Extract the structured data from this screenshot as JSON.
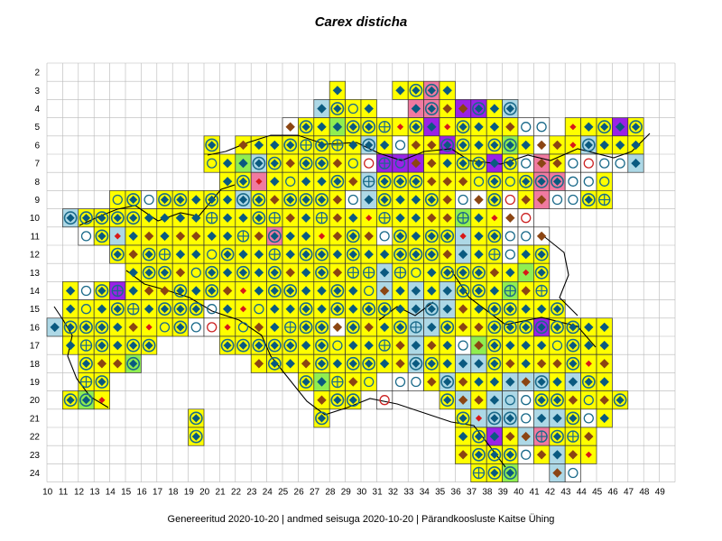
{
  "title": "Carex disticha",
  "footer": "Genereeritud 2020-10-20  |  andmed seisuga 2020-10-20  |  Pärandkoosluste Kaitse Ühing",
  "grid": {
    "row_labels": [
      "2",
      "3",
      "4",
      "5",
      "6",
      "7",
      "8",
      "9",
      "10",
      "11",
      "12",
      "13",
      "14",
      "15",
      "16",
      "17",
      "18",
      "19",
      "20",
      "21",
      "22",
      "23",
      "24"
    ],
    "col_labels": [
      "10",
      "11",
      "12",
      "13",
      "14",
      "15",
      "16",
      "17",
      "18",
      "19",
      "20",
      "21",
      "22",
      "23",
      "24",
      "25",
      "26",
      "27",
      "28",
      "29",
      "30",
      "31",
      "32",
      "33",
      "34",
      "35",
      "36",
      "37",
      "38",
      "39",
      "40",
      "41",
      "42",
      "43",
      "44",
      "45",
      "46",
      "47",
      "48",
      "49"
    ]
  },
  "colors": {
    "yellow": "#ffff00",
    "lightblue": "#add8e6",
    "green": "#90ee50",
    "pink": "#f07aa0",
    "purple": "#9a22e6",
    "grid": "#b8b8b8",
    "cell_border": "#333333",
    "diamond_blue": "#0a5a80",
    "diamond_brown": "#8b4513",
    "diamond_red": "#d81818",
    "circle_teal": "#1a6a8a",
    "circle_red": "#cc2222",
    "coast": "#000000"
  },
  "legend_markers": [
    "diamond-blue",
    "diamond-brown",
    "diamond-red",
    "ringed-diamond",
    "crossed-circle",
    "open-circle",
    "open-circle-red"
  ],
  "fills": {
    "2": {},
    "3": {
      "28": "Y",
      "32": "Y",
      "33": "Y",
      "34": "P",
      "35": "Y"
    },
    "4": {
      "27": "B",
      "28": "Y",
      "29": "Y",
      "30": "Y",
      "33": "P",
      "34": "P",
      "35": "Y",
      "36": "U",
      "37": "U",
      "38": "Y",
      "39": "B"
    },
    "5": {
      "25": "W",
      "26": "Y",
      "27": "Y",
      "28": "G",
      "29": "Y",
      "30": "Y",
      "31": "Y",
      "32": "Y",
      "33": "Y",
      "34": "U",
      "35": "Y",
      "36": "Y",
      "37": "Y",
      "38": "Y",
      "39": "Y",
      "40": "W",
      "41": "W",
      "43": "Y",
      "44": "Y",
      "45": "Y",
      "46": "U",
      "47": "Y"
    },
    "6": {
      "20": "Y",
      "22": "Y",
      "23": "Y",
      "24": "Y",
      "25": "Y",
      "26": "Y",
      "27": "Y",
      "28": "Y",
      "29": "Y",
      "30": "B",
      "31": "Y",
      "32": "W",
      "33": "Y",
      "34": "Y",
      "35": "U",
      "36": "Y",
      "37": "Y",
      "38": "Y",
      "39": "G",
      "40": "Y",
      "41": "W",
      "42": "Y",
      "43": "Y",
      "44": "B",
      "45": "Y",
      "46": "Y",
      "47": "Y"
    },
    "7": {
      "20": "Y",
      "21": "Y",
      "22": "G",
      "23": "B",
      "24": "Y",
      "25": "Y",
      "26": "Y",
      "27": "Y",
      "28": "Y",
      "29": "Y",
      "30": "W",
      "31": "U",
      "32": "U",
      "33": "U",
      "34": "Y",
      "35": "Y",
      "36": "Y",
      "37": "Y",
      "38": "U",
      "39": "Y",
      "40": "W",
      "41": "P",
      "42": "Y",
      "43": "W",
      "44": "W",
      "45": "W",
      "46": "W",
      "47": "B"
    },
    "8": {
      "21": "Y",
      "22": "Y",
      "23": "P",
      "24": "Y",
      "25": "Y",
      "26": "Y",
      "27": "Y",
      "28": "Y",
      "29": "Y",
      "30": "B",
      "31": "Y",
      "32": "Y",
      "33": "Y",
      "34": "Y",
      "35": "Y",
      "36": "Y",
      "37": "Y",
      "38": "Y",
      "39": "Y",
      "40": "Y",
      "41": "P",
      "42": "P",
      "43": "W",
      "44": "W",
      "45": "Y"
    },
    "9": {
      "14": "Y",
      "15": "Y",
      "16": "W",
      "17": "Y",
      "18": "Y",
      "19": "Y",
      "20": "Y",
      "21": "Y",
      "22": "B",
      "23": "Y",
      "24": "Y",
      "25": "Y",
      "26": "Y",
      "27": "Y",
      "28": "Y",
      "29": "W",
      "30": "B",
      "31": "Y",
      "32": "Y",
      "33": "Y",
      "34": "Y",
      "35": "Y",
      "36": "W",
      "37": "W",
      "38": "Y",
      "39": "W",
      "40": "Y",
      "41": "P",
      "42": "W",
      "43": "W",
      "44": "Y",
      "45": "Y"
    },
    "10": {
      "11": "B",
      "12": "Y",
      "13": "Y",
      "14": "Y",
      "15": "Y",
      "16": "Y",
      "17": "Y",
      "18": "Y",
      "19": "Y",
      "20": "Y",
      "21": "Y",
      "22": "Y",
      "23": "Y",
      "24": "Y",
      "25": "Y",
      "26": "Y",
      "27": "Y",
      "28": "Y",
      "29": "Y",
      "30": "Y",
      "31": "Y",
      "32": "Y",
      "33": "Y",
      "34": "Y",
      "35": "Y",
      "36": "G",
      "37": "Y",
      "38": "Y",
      "39": "W",
      "40": "W"
    },
    "11": {
      "12": "W",
      "13": "Y",
      "14": "B",
      "15": "Y",
      "16": "Y",
      "17": "Y",
      "18": "Y",
      "19": "Y",
      "20": "Y",
      "21": "Y",
      "22": "Y",
      "23": "Y",
      "24": "P",
      "25": "Y",
      "26": "Y",
      "27": "Y",
      "28": "Y",
      "29": "Y",
      "30": "Y",
      "31": "W",
      "32": "Y",
      "33": "Y",
      "34": "Y",
      "35": "Y",
      "36": "B",
      "37": "Y",
      "38": "Y",
      "39": "W",
      "40": "W",
      "41": "W"
    },
    "12": {
      "14": "Y",
      "15": "Y",
      "16": "Y",
      "17": "Y",
      "18": "Y",
      "19": "Y",
      "20": "Y",
      "21": "Y",
      "22": "Y",
      "23": "Y",
      "24": "Y",
      "25": "Y",
      "26": "Y",
      "27": "Y",
      "28": "Y",
      "29": "Y",
      "30": "Y",
      "31": "Y",
      "32": "Y",
      "33": "Y",
      "34": "Y",
      "35": "Y",
      "36": "B",
      "37": "Y",
      "38": "Y",
      "39": "W",
      "40": "Y",
      "41": "Y"
    },
    "13": {
      "15": "Y",
      "16": "Y",
      "17": "Y",
      "18": "Y",
      "19": "Y",
      "20": "Y",
      "21": "Y",
      "22": "Y",
      "23": "Y",
      "24": "Y",
      "25": "Y",
      "26": "Y",
      "27": "Y",
      "28": "Y",
      "29": "Y",
      "30": "Y",
      "31": "B",
      "32": "Y",
      "33": "Y",
      "34": "Y",
      "35": "Y",
      "36": "Y",
      "37": "Y",
      "38": "Y",
      "39": "Y",
      "40": "G",
      "41": "Y"
    },
    "14": {
      "11": "Y",
      "12": "W",
      "13": "Y",
      "14": "U",
      "15": "Y",
      "16": "Y",
      "17": "Y",
      "18": "Y",
      "19": "Y",
      "20": "Y",
      "21": "Y",
      "22": "Y",
      "23": "Y",
      "24": "Y",
      "25": "Y",
      "26": "Y",
      "27": "Y",
      "28": "Y",
      "29": "Y",
      "30": "Y",
      "31": "B",
      "32": "Y",
      "33": "B",
      "34": "Y",
      "35": "B",
      "36": "Y",
      "37": "Y",
      "38": "Y",
      "39": "G",
      "40": "Y",
      "41": "Y"
    },
    "15": {
      "11": "Y",
      "12": "Y",
      "13": "Y",
      "14": "Y",
      "15": "Y",
      "16": "Y",
      "17": "Y",
      "18": "Y",
      "19": "Y",
      "20": "W",
      "21": "Y",
      "22": "Y",
      "23": "Y",
      "24": "Y",
      "25": "Y",
      "26": "Y",
      "27": "Y",
      "28": "Y",
      "29": "Y",
      "30": "Y",
      "31": "Y",
      "32": "Y",
      "33": "B",
      "34": "B",
      "35": "B",
      "36": "Y",
      "37": "Y",
      "38": "Y",
      "39": "Y",
      "40": "Y",
      "41": "Y",
      "42": "Y"
    },
    "16": {
      "10": "B",
      "11": "Y",
      "12": "Y",
      "13": "Y",
      "14": "Y",
      "15": "Y",
      "16": "Y",
      "17": "Y",
      "18": "Y",
      "19": "W",
      "20": "W",
      "21": "Y",
      "22": "Y",
      "23": "Y",
      "24": "Y",
      "25": "Y",
      "26": "Y",
      "27": "Y",
      "28": "W",
      "29": "Y",
      "30": "Y",
      "31": "Y",
      "32": "Y",
      "33": "B",
      "34": "B",
      "35": "Y",
      "36": "Y",
      "37": "Y",
      "38": "Y",
      "39": "Y",
      "40": "Y",
      "41": "U",
      "42": "Y",
      "43": "Y",
      "44": "Y",
      "45": "Y"
    },
    "17": {
      "11": "Y",
      "12": "Y",
      "13": "Y",
      "14": "Y",
      "15": "Y",
      "16": "Y",
      "21": "Y",
      "22": "Y",
      "23": "Y",
      "24": "Y",
      "25": "Y",
      "26": "Y",
      "27": "Y",
      "28": "Y",
      "29": "Y",
      "30": "Y",
      "31": "Y",
      "32": "Y",
      "33": "B",
      "34": "Y",
      "35": "Y",
      "36": "W",
      "37": "G",
      "38": "Y",
      "39": "Y",
      "40": "Y",
      "41": "Y",
      "42": "Y",
      "43": "Y",
      "44": "Y",
      "45": "Y"
    },
    "18": {
      "12": "Y",
      "13": "Y",
      "14": "Y",
      "15": "G",
      "23": "Y",
      "24": "Y",
      "25": "Y",
      "26": "Y",
      "27": "Y",
      "28": "Y",
      "29": "Y",
      "30": "Y",
      "31": "Y",
      "32": "Y",
      "33": "B",
      "34": "Y",
      "35": "Y",
      "36": "B",
      "37": "B",
      "38": "Y",
      "39": "Y",
      "40": "Y",
      "41": "Y",
      "42": "Y",
      "43": "Y",
      "44": "Y",
      "45": "Y"
    },
    "19": {
      "12": "Y",
      "13": "Y",
      "26": "Y",
      "27": "G",
      "28": "Y",
      "29": "Y",
      "30": "Y",
      "32": "W",
      "33": "W",
      "34": "Y",
      "35": "B",
      "36": "Y",
      "37": "Y",
      "38": "Y",
      "39": "B",
      "40": "B",
      "41": "B",
      "42": "Y",
      "43": "B",
      "44": "Y",
      "45": "Y"
    },
    "20": {
      "11": "Y",
      "12": "G",
      "13": "Y",
      "27": "Y",
      "28": "Y",
      "29": "Y",
      "31": "W",
      "35": "Y",
      "36": "B",
      "37": "Y",
      "38": "B",
      "39": "B",
      "40": "W",
      "41": "Y",
      "42": "Y",
      "43": "Y",
      "44": "Y",
      "45": "Y",
      "46": "Y"
    },
    "21": {
      "19": "Y",
      "27": "Y",
      "36": "Y",
      "37": "B",
      "38": "B",
      "39": "B",
      "40": "W",
      "41": "B",
      "42": "B",
      "43": "Y",
      "44": "W",
      "45": "Y"
    },
    "22": {
      "19": "Y",
      "36": "Y",
      "37": "Y",
      "38": "U",
      "39": "Y",
      "40": "B",
      "41": "P",
      "42": "Y",
      "43": "Y",
      "44": "Y"
    },
    "23": {
      "36": "Y",
      "37": "Y",
      "38": "Y",
      "39": "Y",
      "40": "W",
      "41": "Y",
      "42": "B",
      "43": "Y",
      "44": "Y"
    },
    "24": {
      "37": "Y",
      "38": "Y",
      "39": "G",
      "42": "B",
      "43": "W"
    }
  }
}
